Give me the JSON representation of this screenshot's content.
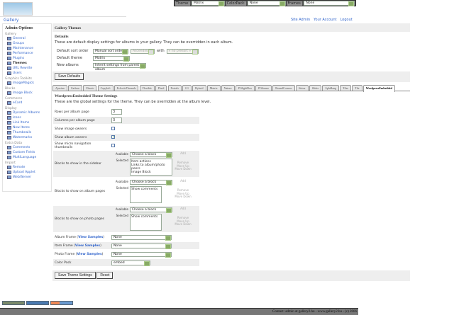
{
  "logo": {
    "text": "Gallery"
  },
  "theme_bar": {
    "theme_label": "Theme:",
    "theme_value": "Matrix",
    "colorpack_label": "ColorPack:",
    "colorpack_value": "None",
    "frames_label": "Frames:",
    "frames_value": "None"
  },
  "breadcrumb": "Gallery",
  "header_links": [
    "Site Admin",
    "Your Account",
    "Logout"
  ],
  "sidebar": {
    "title": "Admin Options",
    "groups": [
      {
        "label": "Gallery",
        "items": [
          "General",
          "Groups",
          "Maintenance",
          "Performance",
          "Plugins",
          "Themes",
          "URL Rewrite",
          "Users"
        ]
      },
      {
        "label": "Graphics Toolkits",
        "items": [
          "ImageMagick"
        ]
      },
      {
        "label": "Blocks",
        "items": [
          "Image Block"
        ]
      },
      {
        "label": "Commerce",
        "items": [
          "eCard"
        ]
      },
      {
        "label": "Display",
        "items": [
          "Dynamic Albums",
          "Icons",
          "Link Items",
          "New Items",
          "Thumbnails",
          "Watermarks"
        ]
      },
      {
        "label": "Extra Data",
        "items": [
          "Comments",
          "Custom Fields",
          "MultiLanguage"
        ]
      },
      {
        "label": "Import",
        "items": [
          "Remote",
          "Upload Applet",
          "Web/Server"
        ]
      }
    ],
    "current": "Themes"
  },
  "main": {
    "title": "Gallery Themes",
    "defaults": {
      "heading": "Defaults",
      "description": "These are default display settings for albums in your gallery. They can be overridden in each album.",
      "sort_label": "Default sort order",
      "sort_value": "Manual sort order",
      "sort_dir": "Ascending",
      "with_label": "with",
      "with_value": "« no presort »",
      "theme_label": "Default theme",
      "theme_value": "Matrix",
      "new_albums_label": "New albums",
      "new_albums_value": "Inherit settings from parent album",
      "save": "Save Defaults"
    },
    "tabs": [
      "Ajaxian",
      "Carbon",
      "Classic",
      "Copyleft",
      "EclecticThemals",
      "Flexible",
      "Fluid",
      "PortaIs",
      "G1",
      "Hybrid",
      "Matrix",
      "Nature",
      "PGlightBox",
      "PGtheme",
      "RoundCorners",
      "Siriux",
      "Slider",
      "SplaBang",
      "Tiles",
      "Tile",
      "WordpressEmbedded"
    ],
    "active_tab": "WordpressEmbedded",
    "settings": {
      "heading": "WordpressEmbedded Theme Settings",
      "description": "These are the global settings for the theme. They can be overridden at the album level.",
      "rows_label": "Rows per album page",
      "rows_value": "3",
      "cols_label": "Columns per album page",
      "cols_value": "3",
      "show_image_owners": {
        "label": "Show image owners",
        "checked": false
      },
      "show_album_owners": {
        "label": "Show album owners",
        "checked": true
      },
      "show_micro": {
        "label": "Show micro navigation thumbnails",
        "checked": false
      },
      "available_label": "Available",
      "selected_label": "Selected",
      "choose": "Choose a block",
      "add": "Add",
      "remove": "Remove",
      "move_up": "Move Up",
      "move_down": "Move Down",
      "sidebar_blocks": {
        "label": "Blocks to show in the sidebar",
        "selected": [
          "Item actions",
          "Links to album/photo peers",
          "Image Block"
        ]
      },
      "album_blocks": {
        "label": "Blocks to show on album pages",
        "selected": [
          "Show comments"
        ]
      },
      "photo_blocks": {
        "label": "Blocks to show on photo pages",
        "selected": [
          "Show comments"
        ]
      },
      "view_samples": "View Samples",
      "album_frame": {
        "label": "Album Frame",
        "value": "None"
      },
      "item_frame": {
        "label": "Item Frame",
        "value": "None"
      },
      "photo_frame": {
        "label": "Photo Frame",
        "value": "None"
      },
      "color_pack": {
        "label": "Color Pack",
        "value": "embed"
      },
      "save": "Save Theme Settings",
      "reset": "Reset"
    }
  },
  "footer": "Contact: admin at gallery2.hu - www.gallery2.hu - (c) 2006"
}
